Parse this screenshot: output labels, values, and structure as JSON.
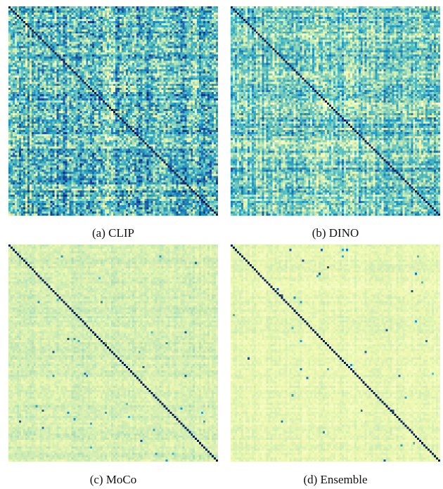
{
  "chart_data": [
    {
      "type": "heatmap",
      "caption": "(a) CLIP",
      "rows": 100,
      "cols": 100,
      "diagonal_value": 1.0,
      "off_diagonal_level": 0.45,
      "off_diagonal_variation": 0.28,
      "banding": "strong",
      "colormap": [
        "#ffffd9",
        "#edf8b1",
        "#c7e9b4",
        "#7fcdbb",
        "#41b6c4",
        "#1d91c0",
        "#225ea8",
        "#0c2c84",
        "#081d58"
      ]
    },
    {
      "type": "heatmap",
      "caption": "(b) DINO",
      "rows": 100,
      "cols": 100,
      "diagonal_value": 1.0,
      "off_diagonal_level": 0.38,
      "off_diagonal_variation": 0.22,
      "banding": "strong",
      "colormap": [
        "#ffffd9",
        "#edf8b1",
        "#c7e9b4",
        "#7fcdbb",
        "#41b6c4",
        "#1d91c0",
        "#225ea8",
        "#0c2c84",
        "#081d58"
      ]
    },
    {
      "type": "heatmap",
      "caption": "(c) MoCo",
      "rows": 100,
      "cols": 100,
      "diagonal_value": 1.0,
      "off_diagonal_level": 0.2,
      "off_diagonal_variation": 0.06,
      "banding": "weak",
      "sparse_highlights": "few dark cells",
      "colormap": [
        "#ffffd9",
        "#edf8b1",
        "#c7e9b4",
        "#7fcdbb",
        "#41b6c4",
        "#1d91c0",
        "#225ea8",
        "#0c2c84",
        "#081d58"
      ]
    },
    {
      "type": "heatmap",
      "caption": "(d) Ensemble",
      "rows": 100,
      "cols": 100,
      "diagonal_value": 1.0,
      "off_diagonal_level": 0.14,
      "off_diagonal_variation": 0.05,
      "banding": "weak",
      "sparse_highlights": "few dark cells",
      "colormap": [
        "#ffffd9",
        "#edf8b1",
        "#c7e9b4",
        "#7fcdbb",
        "#41b6c4",
        "#1d91c0",
        "#225ea8",
        "#0c2c84",
        "#081d58"
      ]
    }
  ]
}
